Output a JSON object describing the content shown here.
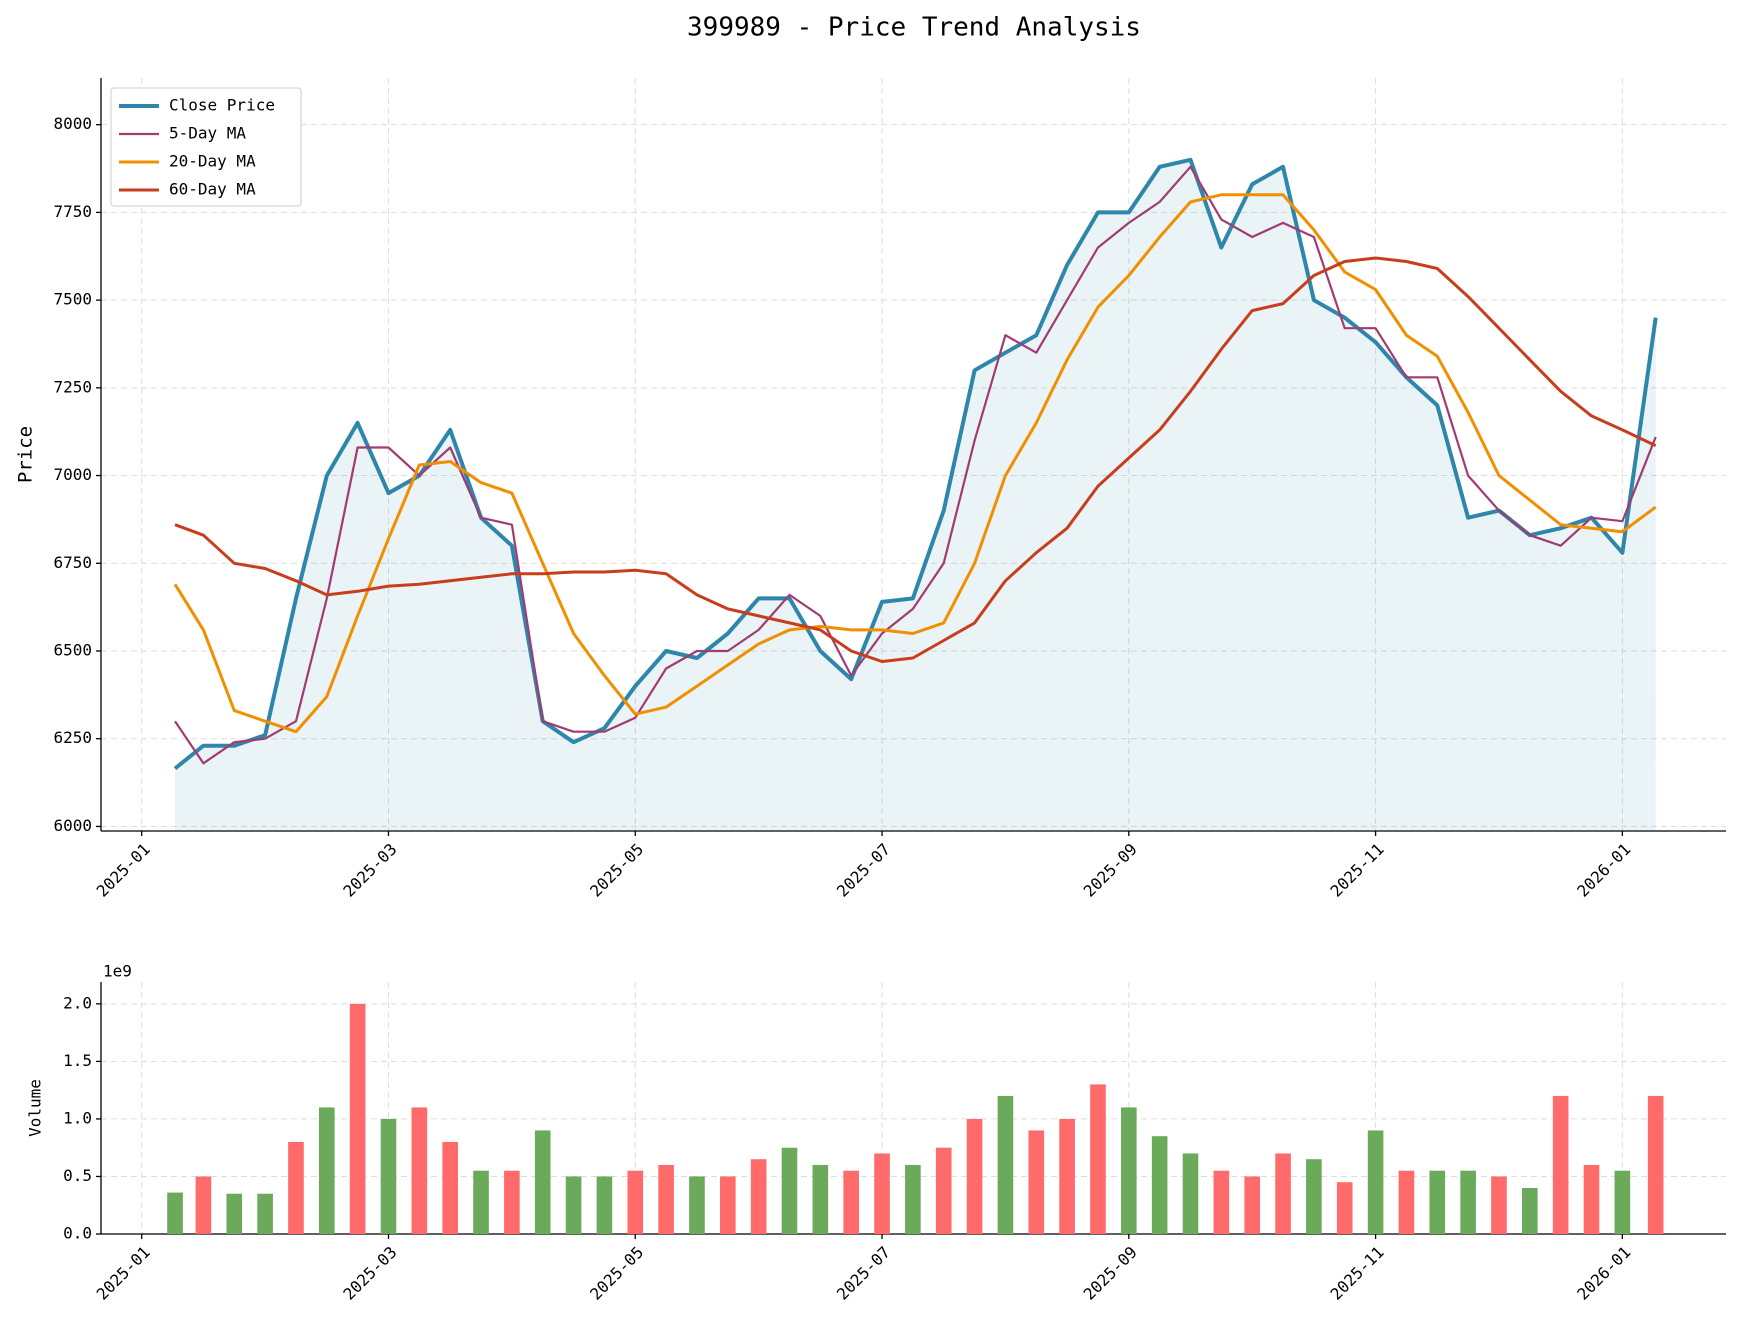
{
  "chart_data": [
    {
      "type": "line",
      "title": "399989 - Price Trend Analysis",
      "ylabel": "Price",
      "x": [
        0.27,
        0.5,
        0.75,
        1.0,
        1.25,
        1.5,
        1.75,
        2.0,
        2.25,
        2.5,
        2.75,
        3.0,
        3.25,
        3.5,
        3.75,
        4.0,
        4.25,
        4.5,
        4.75,
        5.0,
        5.25,
        5.5,
        5.75,
        6.0,
        6.25,
        6.5,
        6.75,
        7.0,
        7.25,
        7.5,
        7.75,
        8.0,
        8.25,
        8.5,
        8.75,
        9.0,
        9.25,
        9.5,
        9.75,
        10.0,
        10.25,
        10.5,
        10.75,
        11.0,
        11.25,
        11.5,
        11.75,
        12.0,
        12.27
      ],
      "series": [
        {
          "name": "Close Price",
          "color": "#2e86ab",
          "width": 4,
          "fill": true,
          "values": [
            6165,
            6230,
            6230,
            6260,
            6650,
            7000,
            7150,
            6950,
            7000,
            7130,
            6880,
            6800,
            6300,
            6240,
            6280,
            6400,
            6500,
            6480,
            6550,
            6650,
            6650,
            6500,
            6420,
            6640,
            6650,
            6900,
            7300,
            7350,
            7400,
            7600,
            7750,
            7750,
            7880,
            7900,
            7650,
            7830,
            7880,
            7500,
            7450,
            7380,
            7280,
            7200,
            6880,
            6900,
            6830,
            6850,
            6880,
            6780,
            7450
          ]
        },
        {
          "name": "5-Day MA",
          "color": "#a23b72",
          "width": 2.2,
          "values": [
            6300,
            6180,
            6240,
            6250,
            6300,
            6650,
            7080,
            7080,
            7000,
            7080,
            6880,
            6860,
            6300,
            6270,
            6270,
            6310,
            6450,
            6500,
            6500,
            6560,
            6660,
            6600,
            6430,
            6550,
            6620,
            6750,
            7100,
            7400,
            7350,
            7500,
            7650,
            7720,
            7780,
            7880,
            7730,
            7680,
            7720,
            7680,
            7420,
            7420,
            7280,
            7280,
            7000,
            6900,
            6830,
            6800,
            6880,
            6870,
            7110
          ]
        },
        {
          "name": "20-Day MA",
          "color": "#f18f01",
          "width": 3,
          "values": [
            6690,
            6560,
            6330,
            6300,
            6270,
            6370,
            6600,
            6820,
            7030,
            7040,
            6980,
            6950,
            6750,
            6550,
            6430,
            6320,
            6340,
            6400,
            6460,
            6520,
            6560,
            6570,
            6560,
            6560,
            6550,
            6580,
            6750,
            7000,
            7150,
            7330,
            7480,
            7570,
            7680,
            7780,
            7800,
            7800,
            7800,
            7700,
            7580,
            7530,
            7400,
            7340,
            7180,
            7000,
            6930,
            6860,
            6850,
            6840,
            6910
          ]
        },
        {
          "name": "60-Day MA",
          "color": "#c73e1d",
          "width": 3,
          "values": [
            6860,
            6830,
            6750,
            6735,
            6700,
            6660,
            6670,
            6685,
            6690,
            6700,
            6710,
            6720,
            6720,
            6725,
            6725,
            6730,
            6720,
            6660,
            6620,
            6600,
            6580,
            6560,
            6500,
            6470,
            6480,
            6530,
            6580,
            6700,
            6780,
            6850,
            6970,
            7050,
            7130,
            7240,
            7360,
            7470,
            7490,
            7570,
            7610,
            7620,
            7610,
            7590,
            7510,
            7420,
            7330,
            7240,
            7170,
            7130,
            7085
          ]
        }
      ],
      "xlim": [
        -0.33,
        12.84
      ],
      "xticks": [
        {
          "value": 0,
          "label": "2025-01"
        },
        {
          "value": 2,
          "label": "2025-03"
        },
        {
          "value": 4,
          "label": "2025-05"
        },
        {
          "value": 6,
          "label": "2025-07"
        },
        {
          "value": 8,
          "label": "2025-09"
        },
        {
          "value": 10,
          "label": "2025-11"
        },
        {
          "value": 12,
          "label": "2026-01"
        }
      ],
      "ylim": [
        5987,
        8133
      ],
      "yticks": [
        6000,
        6250,
        6500,
        6750,
        7000,
        7250,
        7500,
        7750,
        8000
      ],
      "grid": true,
      "legend": "upper-left"
    },
    {
      "type": "bar",
      "ylabel": "Volume",
      "offset_label": "1e9",
      "x": [
        0.27,
        0.5,
        0.75,
        1.0,
        1.25,
        1.5,
        1.75,
        2.0,
        2.25,
        2.5,
        2.75,
        3.0,
        3.25,
        3.5,
        3.75,
        4.0,
        4.25,
        4.5,
        4.75,
        5.0,
        5.25,
        5.5,
        5.75,
        6.0,
        6.25,
        6.5,
        6.75,
        7.0,
        7.25,
        7.5,
        7.75,
        8.0,
        8.25,
        8.5,
        8.75,
        9.0,
        9.25,
        9.5,
        9.75,
        10.0,
        10.25,
        10.5,
        10.75,
        11.0,
        11.25,
        11.5,
        11.75,
        12.0,
        12.27
      ],
      "values": [
        0.36,
        0.5,
        0.35,
        0.35,
        0.8,
        1.1,
        2.0,
        1.0,
        1.1,
        0.8,
        0.55,
        0.55,
        0.9,
        0.5,
        0.5,
        0.55,
        0.6,
        0.5,
        0.5,
        0.65,
        0.75,
        0.6,
        0.55,
        0.7,
        0.6,
        0.75,
        1.0,
        1.2,
        0.9,
        1.0,
        1.3,
        1.1,
        0.85,
        0.7,
        0.55,
        0.5,
        0.7,
        0.65,
        0.45,
        0.9,
        0.55,
        0.55,
        0.55,
        0.5,
        0.4,
        1.2,
        0.6,
        0.55,
        1.2
      ],
      "colors": [
        "#6aaa5a",
        "#ff6b6b",
        "#6aaa5a",
        "#6aaa5a",
        "#ff6b6b",
        "#6aaa5a",
        "#ff6b6b",
        "#6aaa5a",
        "#ff6b6b",
        "#ff6b6b",
        "#6aaa5a",
        "#ff6b6b",
        "#6aaa5a",
        "#6aaa5a",
        "#6aaa5a",
        "#ff6b6b",
        "#ff6b6b",
        "#6aaa5a",
        "#ff6b6b",
        "#ff6b6b",
        "#6aaa5a",
        "#6aaa5a",
        "#ff6b6b",
        "#ff6b6b",
        "#6aaa5a",
        "#ff6b6b",
        "#ff6b6b",
        "#6aaa5a",
        "#ff6b6b",
        "#ff6b6b",
        "#ff6b6b",
        "#6aaa5a",
        "#6aaa5a",
        "#6aaa5a",
        "#ff6b6b",
        "#ff6b6b",
        "#ff6b6b",
        "#6aaa5a",
        "#ff6b6b",
        "#6aaa5a",
        "#ff6b6b",
        "#6aaa5a",
        "#6aaa5a",
        "#ff6b6b",
        "#6aaa5a",
        "#ff6b6b",
        "#ff6b6b",
        "#6aaa5a",
        "#ff6b6b"
      ],
      "xlim": [
        -0.33,
        12.84
      ],
      "xticks": [
        {
          "value": 0,
          "label": "2025-01"
        },
        {
          "value": 2,
          "label": "2025-03"
        },
        {
          "value": 4,
          "label": "2025-05"
        },
        {
          "value": 6,
          "label": "2025-07"
        },
        {
          "value": 8,
          "label": "2025-09"
        },
        {
          "value": 10,
          "label": "2025-11"
        },
        {
          "value": 12,
          "label": "2026-01"
        }
      ],
      "ylim": [
        0,
        2.19
      ],
      "yticks": [
        {
          "value": 0,
          "label": "0.0"
        },
        0.5,
        {
          "value": 1,
          "label": "1.0"
        },
        1.5,
        {
          "value": 2,
          "label": "2.0"
        }
      ],
      "grid": true
    }
  ]
}
